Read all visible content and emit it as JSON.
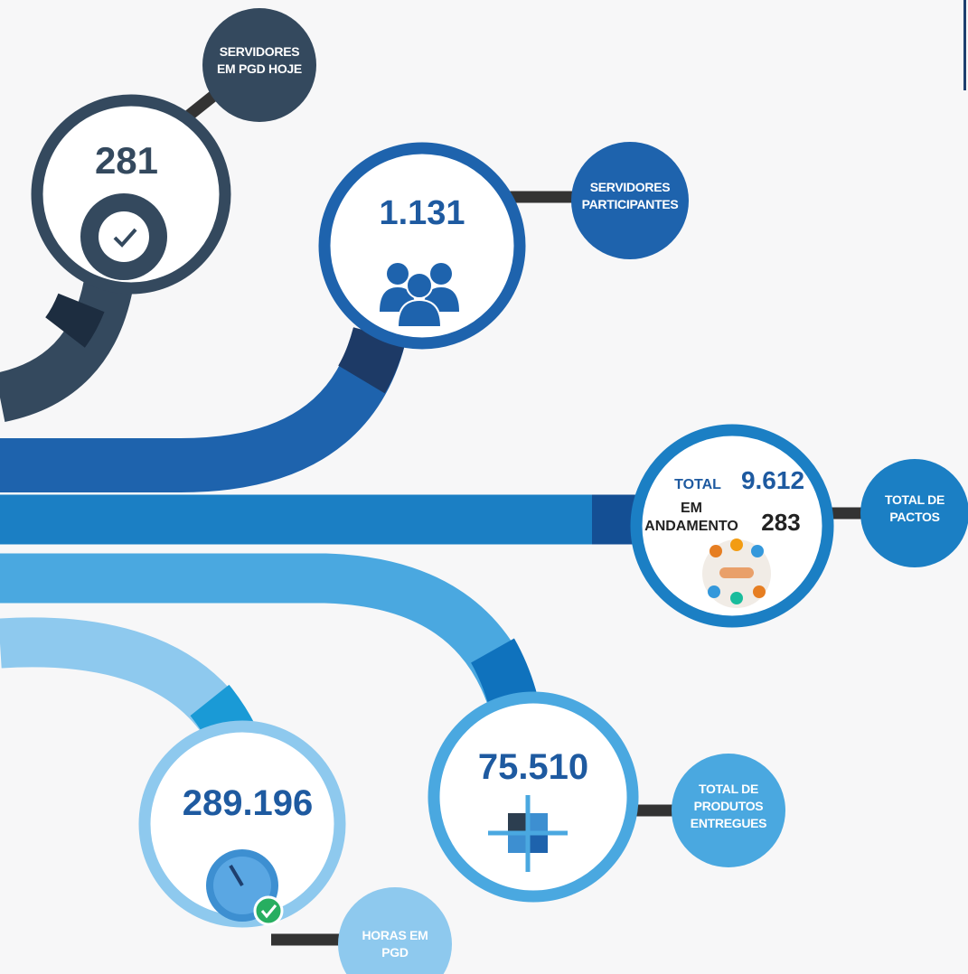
{
  "metrics": [
    {
      "value": "281",
      "label": [
        "SERVIDORES",
        "EM PGD HOJE"
      ]
    },
    {
      "value": "1.131",
      "label": [
        "SERVIDORES",
        "PARTICIPANTES"
      ]
    },
    {
      "total_label": "TOTAL",
      "total": "9.612",
      "ongoing_label": [
        "EM",
        "ANDAMENTO"
      ],
      "ongoing": "283",
      "label": [
        "TOTAL DE",
        "PACTOS"
      ]
    },
    {
      "value": "75.510",
      "label": [
        "TOTAL DE",
        "PRODUTOS",
        "ENTREGUES"
      ]
    },
    {
      "value": "289.196",
      "label": [
        "HORAS EM",
        "PGD"
      ]
    }
  ]
}
